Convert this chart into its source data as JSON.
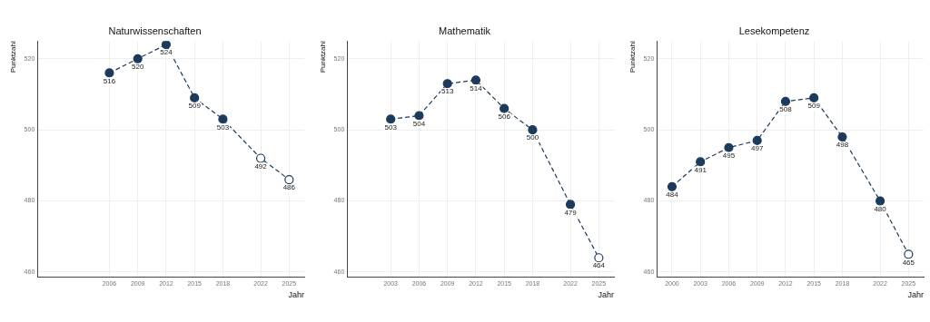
{
  "chart_data": [
    {
      "type": "line",
      "title": "Naturwissenschaften",
      "xlabel": "Jahr",
      "ylabel": "Punktzahl",
      "x": [
        2006,
        2009,
        2012,
        2015,
        2018,
        2022,
        2025
      ],
      "series": [
        {
          "color": "#1b3a5c",
          "values": [
            516,
            520,
            524,
            509,
            503,
            492,
            486
          ],
          "colors": [
            "#1b3a5c",
            "#1b3a5c",
            "#1b3a5c",
            "#1b3a5c",
            "#1b3a5c",
            "#ffffff",
            "#ffffff"
          ]
        }
      ],
      "xlim": [
        1998.4,
        2026.6
      ],
      "xticks": [
        2006,
        2009,
        2012,
        2015,
        2018,
        2022,
        2025
      ],
      "ylim": [
        458.5,
        525
      ],
      "yticks": [
        460,
        480,
        500,
        520
      ],
      "grid": true,
      "legend": false,
      "marker": "circle",
      "line_style": "dashed",
      "data_labels": true
    },
    {
      "type": "line",
      "title": "Mathematik",
      "xlabel": "Jahr",
      "ylabel": "Punktzahl",
      "x": [
        2003,
        2006,
        2009,
        2012,
        2015,
        2018,
        2022,
        2025
      ],
      "series": [
        {
          "color": "#1b3a5c",
          "values": [
            503,
            504,
            513,
            514,
            506,
            500,
            479,
            464
          ],
          "colors": [
            "#1b3a5c",
            "#1b3a5c",
            "#1b3a5c",
            "#1b3a5c",
            "#1b3a5c",
            "#1b3a5c",
            "#1b3a5c",
            "#ffffff"
          ]
        }
      ],
      "xlim": [
        1998.4,
        2026.6
      ],
      "xticks": [
        2003,
        2006,
        2009,
        2012,
        2015,
        2018,
        2022,
        2025
      ],
      "ylim": [
        458.5,
        525
      ],
      "yticks": [
        460,
        480,
        500,
        520
      ],
      "grid": true,
      "legend": false,
      "marker": "circle",
      "line_style": "dashed",
      "data_labels": true
    },
    {
      "type": "line",
      "title": "Lesekompetenz",
      "xlabel": "Jahr",
      "ylabel": "Punktzahl",
      "x": [
        2000,
        2003,
        2006,
        2009,
        2012,
        2015,
        2018,
        2022,
        2025
      ],
      "series": [
        {
          "color": "#1b3a5c",
          "values": [
            484,
            491,
            495,
            497,
            508,
            509,
            498,
            480,
            465
          ],
          "colors": [
            "#1b3a5c",
            "#1b3a5c",
            "#1b3a5c",
            "#1b3a5c",
            "#1b3a5c",
            "#1b3a5c",
            "#1b3a5c",
            "#1b3a5c",
            "#ffffff"
          ]
        }
      ],
      "xlim": [
        1998.4,
        2026.6
      ],
      "xticks": [
        2000,
        2003,
        2006,
        2009,
        2012,
        2015,
        2018,
        2022,
        2025
      ],
      "ylim": [
        458.5,
        525
      ],
      "yticks": [
        460,
        480,
        500,
        520
      ],
      "grid": true,
      "legend": false,
      "marker": "circle",
      "line_style": "dashed",
      "data_labels": true
    }
  ]
}
